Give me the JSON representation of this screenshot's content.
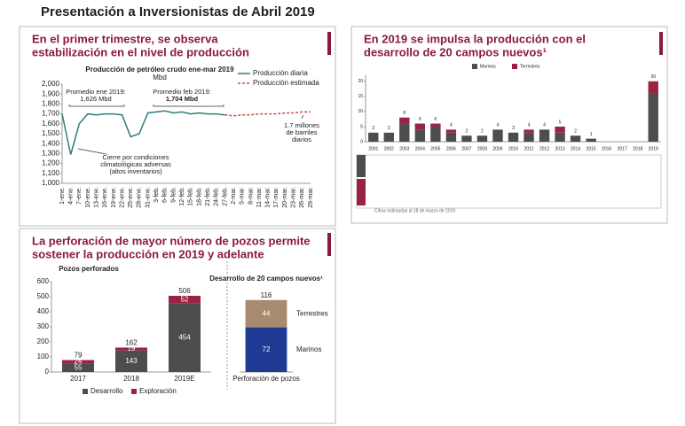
{
  "title": "Presentación a Inversionistas de Abril 2019",
  "chart_data": [
    {
      "type": "line",
      "slide_title": [
        "En el primer trimestre, se observa",
        "estabilización en el nivel de producción"
      ],
      "title": "Producción de petróleo crudo ene-mar 2019",
      "subtitle": "Mbd",
      "categories": [
        "1-ene.",
        "4-ene.",
        "7-ene.",
        "10-ene.",
        "13-ene.",
        "16-ene.",
        "19-ene.",
        "22-ene.",
        "25-ene.",
        "28-ene.",
        "31-ene.",
        "3-feb.",
        "6-feb.",
        "9-feb.",
        "12-feb.",
        "15-feb.",
        "18-feb.",
        "21-feb.",
        "24-feb.",
        "27-feb.",
        "2-mar.",
        "5-mar.",
        "8-mar.",
        "11-mar.",
        "14-mar.",
        "17-mar.",
        "20-mar.",
        "23-mar.",
        "26-mar.",
        "29-mar."
      ],
      "series": [
        {
          "name": "Producción diaria",
          "color": "#2e7d7a",
          "dash": false,
          "values": [
            1700,
            1290,
            1600,
            1700,
            1690,
            1700,
            1700,
            1690,
            1470,
            1500,
            1710,
            1720,
            1730,
            1710,
            1720,
            1700,
            1710,
            1700,
            1700,
            1690,
            null,
            null,
            null,
            null,
            null,
            null,
            null,
            null,
            null,
            null
          ]
        },
        {
          "name": "Producción estimada",
          "color": "#c0504d",
          "dash": true,
          "values": [
            null,
            null,
            null,
            null,
            null,
            null,
            null,
            null,
            null,
            null,
            null,
            null,
            null,
            null,
            null,
            null,
            null,
            null,
            null,
            1690,
            1680,
            1690,
            1690,
            1700,
            1700,
            1700,
            1710,
            1710,
            1720,
            1720
          ]
        }
      ],
      "ylim": [
        1000,
        2000
      ],
      "yticks": [
        {
          "value": 1000,
          "label": "1,000"
        },
        {
          "value": 1100,
          "label": "1,100"
        },
        {
          "value": 1200,
          "label": "1,200"
        },
        {
          "value": 1300,
          "label": "1,300"
        },
        {
          "value": 1400,
          "label": "1,400"
        },
        {
          "value": 1500,
          "label": "1,500"
        },
        {
          "value": 1600,
          "label": "1,600"
        },
        {
          "value": 1700,
          "label": "1,700"
        },
        {
          "value": 1800,
          "label": "1,800"
        },
        {
          "value": 1900,
          "label": "1,900"
        },
        {
          "value": 2000,
          "label": "2,000"
        }
      ],
      "annotations": [
        "Promedio ene 2019:",
        "1,626 Mbd",
        "Promedio feb 2019:",
        "1,704 Mbd",
        "Cierre por condiciones",
        "climatológicas adversas",
        "(altos inventarios)",
        "1.7 millones",
        "de barriles",
        "diarios"
      ],
      "legend": "top-right"
    },
    {
      "type": "stacked-bar",
      "slide_title": [
        "En 2019 se impulsa la producción con el",
        "desarrollo de 20 campos nuevos¹"
      ],
      "categories": [
        "2001",
        "2002",
        "2003",
        "2004",
        "2005",
        "2006",
        "2007",
        "2008",
        "2009",
        "2010",
        "2011",
        "2012",
        "2013",
        "2014",
        "2015",
        "2016",
        "2017",
        "2018",
        "2019"
      ],
      "series": [
        {
          "name": "Marinos",
          "color": "#4d4d4d",
          "values": [
            3,
            3,
            6,
            4,
            5,
            3,
            2,
            2,
            4,
            3,
            3,
            4,
            3,
            2,
            1,
            0,
            0,
            0,
            16
          ]
        },
        {
          "name": "Terrestres",
          "color": "#9b2242",
          "values": [
            0,
            0,
            2,
            2,
            1,
            1,
            0,
            0,
            0,
            0,
            1,
            0,
            2,
            0,
            0,
            0,
            0,
            0,
            4
          ]
        }
      ],
      "totals": [
        3,
        3,
        8,
        6,
        6,
        4,
        2,
        2,
        4,
        3,
        4,
        4,
        5,
        2,
        1,
        null,
        null,
        null,
        20
      ],
      "ylim": [
        0,
        22
      ],
      "yticks": [
        0,
        5,
        10,
        15,
        20
      ],
      "legend": "top",
      "segment_labels": false,
      "footnote": "Cifras estimadas al 18 de marzo de 2019"
    },
    {
      "type": "stacked-bar",
      "slide_title": [
        "La perforación de mayor número de pozos permite",
        "sostener la producción en 2019 y adelante"
      ],
      "title": "Pozos perforados",
      "categories": [
        "2017",
        "2018",
        "2019E"
      ],
      "series": [
        {
          "name": "Desarrollo",
          "color": "#4d4d4d",
          "values": [
            55,
            143,
            454
          ]
        },
        {
          "name": "Exploración",
          "color": "#9b2242",
          "values": [
            24,
            19,
            52
          ]
        }
      ],
      "totals": [
        79,
        162,
        506
      ],
      "ylim": [
        0,
        600
      ],
      "yticks": [
        0,
        100,
        200,
        300,
        400,
        500,
        600
      ],
      "legend": "bottom",
      "segment_labels": true
    },
    {
      "type": "stacked-bar",
      "title": "Desarrollo de 20 campos nuevos¹",
      "categories": [
        "Perforación de pozos"
      ],
      "series": [
        {
          "name": "Marinos",
          "color": "#1f3a93",
          "values": [
            72
          ]
        },
        {
          "name": "Terrestres",
          "color": "#a88b6e",
          "values": [
            44
          ]
        }
      ],
      "totals": [
        116
      ],
      "ylim": [
        0,
        130
      ],
      "legend": "right",
      "segment_labels": true
    }
  ]
}
